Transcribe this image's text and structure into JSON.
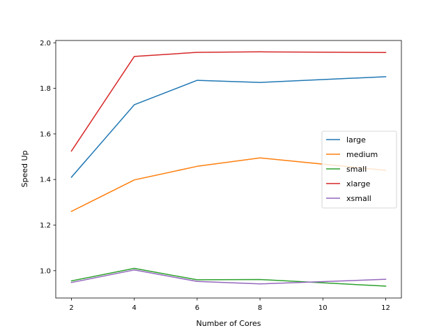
{
  "chart_data": {
    "type": "line",
    "title": "",
    "xlabel": "Number of Cores",
    "ylabel": "Speed Up",
    "x": [
      2,
      4,
      6,
      8,
      10,
      12
    ],
    "xlim": [
      1.5,
      12.5
    ],
    "ylim": [
      0.88,
      2.01
    ],
    "xticks": [
      2,
      4,
      6,
      8,
      10,
      12
    ],
    "yticks": [
      1.0,
      1.2,
      1.4,
      1.6,
      1.8,
      2.0
    ],
    "ytick_labels": [
      "1.0",
      "1.2",
      "1.4",
      "1.6",
      "1.8",
      "2.0"
    ],
    "grid": false,
    "legend_position": "center-right",
    "series": [
      {
        "name": "large",
        "color": "#1f77b4",
        "x": [
          2,
          4,
          6,
          8,
          12
        ],
        "values": [
          1.41,
          1.728,
          1.835,
          1.826,
          1.851
        ]
      },
      {
        "name": "medium",
        "color": "#ff7f0e",
        "x": [
          2,
          4,
          6,
          8,
          12
        ],
        "values": [
          1.26,
          1.398,
          1.458,
          1.495,
          1.44
        ]
      },
      {
        "name": "small",
        "color": "#2ca02c",
        "x": [
          2,
          4,
          6,
          8,
          12
        ],
        "values": [
          0.955,
          1.01,
          0.96,
          0.961,
          0.932
        ]
      },
      {
        "name": "xlarge",
        "color": "#d62728",
        "x": [
          2,
          4,
          6,
          8,
          12
        ],
        "values": [
          1.525,
          1.94,
          1.958,
          1.96,
          1.957
        ]
      },
      {
        "name": "xsmall",
        "color": "#9467bd",
        "x": [
          2,
          4,
          6,
          8,
          12
        ],
        "values": [
          0.948,
          1.003,
          0.953,
          0.942,
          0.962
        ]
      }
    ]
  }
}
